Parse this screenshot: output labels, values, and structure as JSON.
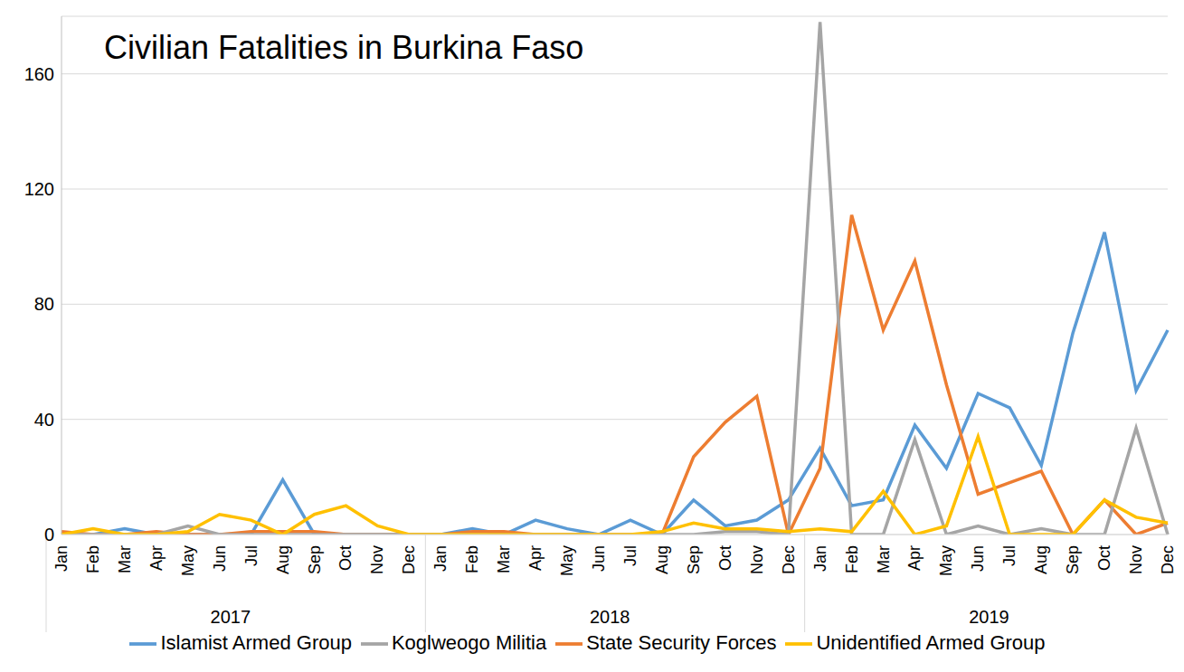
{
  "chart_data": {
    "type": "line",
    "title": "Civilian Fatalities in Burkina Faso",
    "categories": [
      "Jan",
      "Feb",
      "Mar",
      "Apr",
      "May",
      "Jun",
      "Jul",
      "Aug",
      "Sep",
      "Oct",
      "Nov",
      "Dec",
      "Jan",
      "Feb",
      "Mar",
      "Apr",
      "May",
      "Jun",
      "Jul",
      "Aug",
      "Sep",
      "Oct",
      "Nov",
      "Dec",
      "Jan",
      "Feb",
      "Mar",
      "Apr",
      "May",
      "Jun",
      "Jul",
      "Aug",
      "Sep",
      "Oct",
      "Nov",
      "Dec"
    ],
    "x_groups": [
      "2017",
      "2018",
      "2019"
    ],
    "series": [
      {
        "name": "Islamist Armed Group",
        "color": "#5b9bd5",
        "values": [
          0,
          0,
          2,
          0,
          0,
          0,
          0,
          19,
          0,
          0,
          0,
          0,
          0,
          2,
          0,
          5,
          2,
          0,
          5,
          0,
          12,
          3,
          5,
          12,
          30,
          10,
          12,
          38,
          23,
          49,
          44,
          24,
          70,
          105,
          50,
          71
        ]
      },
      {
        "name": "State Security Forces",
        "color": "#ed7d31",
        "values": [
          1,
          0,
          0,
          1,
          0,
          0,
          1,
          1,
          1,
          0,
          0,
          0,
          0,
          1,
          1,
          0,
          0,
          0,
          0,
          0,
          27,
          39,
          48,
          0,
          23,
          111,
          71,
          95,
          52,
          14,
          18,
          22,
          0,
          12,
          0,
          4
        ]
      },
      {
        "name": "Koglweogo Militia",
        "color": "#a5a5a5",
        "values": [
          0,
          0,
          0,
          0,
          3,
          0,
          0,
          0,
          0,
          0,
          0,
          0,
          0,
          0,
          0,
          0,
          0,
          0,
          0,
          0,
          0,
          1,
          1,
          0,
          178,
          0,
          0,
          33,
          0,
          3,
          0,
          2,
          0,
          0,
          37,
          0
        ]
      },
      {
        "name": "Unidentified Armed Group",
        "color": "#ffc000",
        "values": [
          0,
          2,
          0,
          0,
          1,
          7,
          5,
          0,
          7,
          10,
          3,
          0,
          0,
          0,
          0,
          0,
          0,
          0,
          0,
          1,
          4,
          2,
          2,
          1,
          2,
          1,
          15,
          0,
          3,
          34,
          0,
          0,
          0,
          12,
          6,
          4
        ]
      }
    ],
    "ylim": [
      0,
      180
    ],
    "yticks": [
      0,
      40,
      80,
      120,
      160
    ],
    "grid": true,
    "legend": "bottom"
  }
}
